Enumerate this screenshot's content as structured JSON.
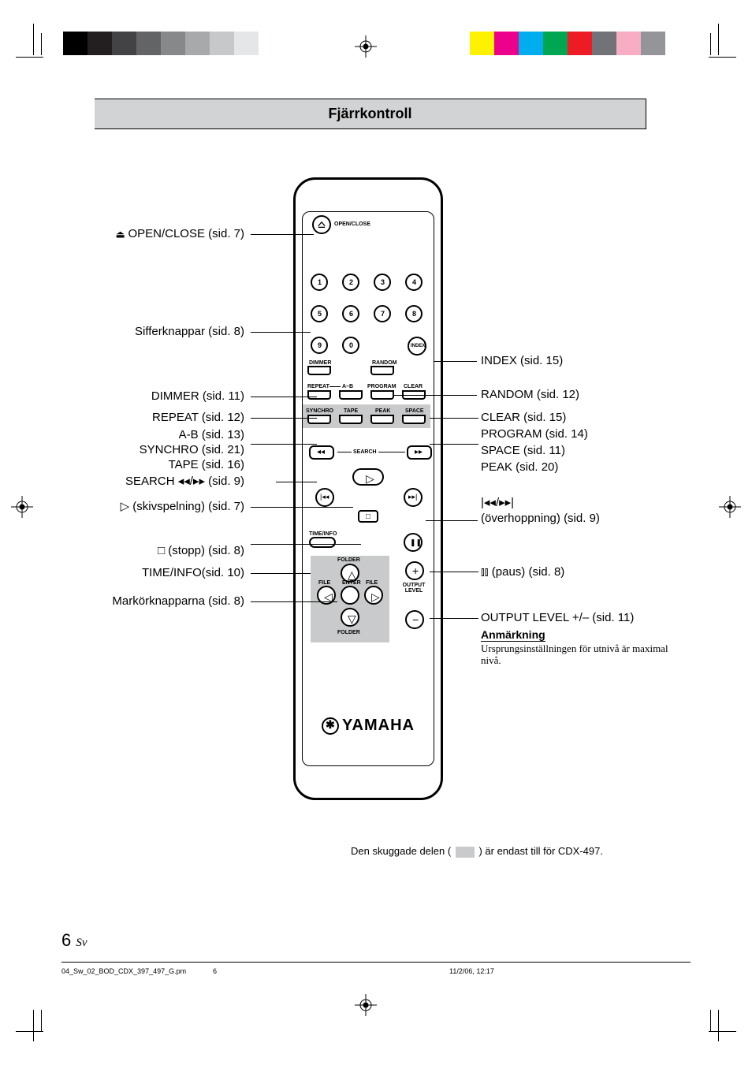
{
  "title": "Fjärrkontroll",
  "brand": "YAMAHA",
  "color_bars": {
    "left": [
      "#000000",
      "#231f20",
      "#434345",
      "#636466",
      "#86888a",
      "#a7a9ab",
      "#c6c8ca",
      "#e5e6e7"
    ],
    "right": [
      "#fff200",
      "#ec008c",
      "#00aeef",
      "#00a651",
      "#ed1c24",
      "#727376",
      "#f7adc4",
      "#939598"
    ]
  },
  "left_labels": {
    "openclose": "OPEN/CLOSE (sid. 7)",
    "numkeys": "Sifferknappar (sid. 8)",
    "dimmer": "DIMMER (sid. 11)",
    "repeat": "REPEAT (sid. 12)",
    "ab": "A-B (sid. 13)",
    "synchro": "SYNCHRO (sid. 21)",
    "tape": "TAPE (sid. 16)",
    "search_sym": "SEARCH ◂◂/▸▸ (sid. 9)",
    "play": "▷ (skivspelning) (sid. 7)",
    "stop": "□ (stopp) (sid. 8)",
    "timeinfo": "TIME/INFO(sid. 10)",
    "cursor": "Markörknapparna (sid. 8)"
  },
  "right_labels": {
    "index": "INDEX (sid. 15)",
    "random": "RANDOM (sid. 12)",
    "clear": "CLEAR (sid. 15)",
    "program": "PROGRAM (sid. 14)",
    "space": "SPACE (sid. 11)",
    "peak": "PEAK (sid. 20)",
    "skip": "|◂◂/▸▸| (överhoppning) (sid. 9)",
    "pause": "⫾⫾ (paus) (sid. 8)",
    "output": "OUTPUT LEVEL +/– (sid. 11)"
  },
  "note": {
    "title": "Anmärkning",
    "text": "Ursprungsinställningen för utnivå är maximal nivå."
  },
  "buttons": {
    "openclose": "OPEN/CLOSE",
    "index": "INDEX",
    "nums": [
      "1",
      "2",
      "3",
      "4",
      "5",
      "6",
      "7",
      "8",
      "9",
      "0"
    ],
    "dimmer": "DIMMER",
    "random": "RANDOM",
    "repeat": "REPEAT",
    "ab": "A–B",
    "program": "PROGRAM",
    "clear": "CLEAR",
    "synchro": "SYNCHRO",
    "tape": "TAPE",
    "peak": "PEAK",
    "space": "SPACE",
    "search": "SEARCH",
    "timeinfo": "TIME/INFO",
    "folder": "FOLDER",
    "file": "FILE",
    "enter": "ENTER",
    "output_level": "OUTPUT\nLEVEL"
  },
  "legend": {
    "pre": "Den skuggade delen (",
    "post": ")  är endast till för CDX-497."
  },
  "page": {
    "num": "6",
    "sv": "Sv"
  },
  "meta": {
    "file": "04_Sw_02_BOD_CDX_397_497_G.pm",
    "page": "6",
    "date": "11/2/06, 12:17"
  }
}
